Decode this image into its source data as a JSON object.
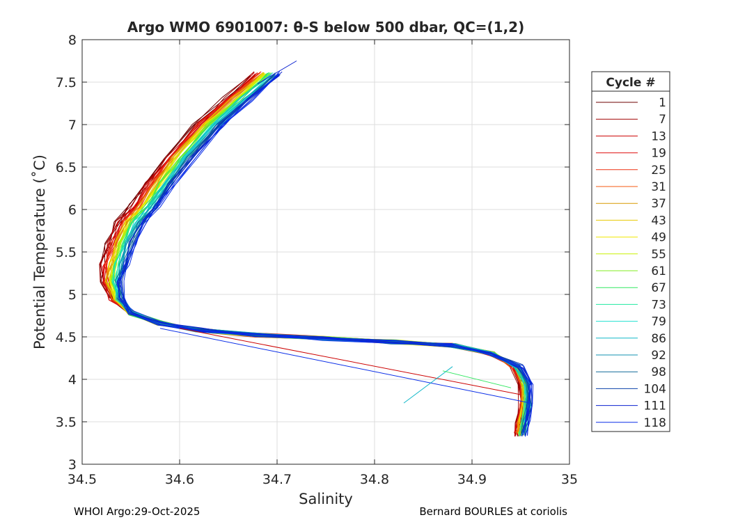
{
  "chart_data": {
    "type": "line",
    "title": "Argo WMO 6901007: θ-S below 500 dbar,  QC=(1,2)",
    "xlabel": "Salinity",
    "ylabel": "Potential Temperature (˚C)",
    "xlim": [
      34.5,
      35
    ],
    "ylim": [
      3,
      8
    ],
    "xticks": [
      34.5,
      34.6,
      34.7,
      34.8,
      34.9,
      35
    ],
    "xtick_labels": [
      "34.5",
      "34.6",
      "34.7",
      "34.8",
      "34.9",
      "35"
    ],
    "yticks": [
      3,
      3.5,
      4,
      4.5,
      5,
      5.5,
      6,
      6.5,
      7,
      7.5,
      8
    ],
    "ytick_labels": [
      "3",
      "3.5",
      "4",
      "4.5",
      "5",
      "5.5",
      "6",
      "6.5",
      "7",
      "7.5",
      "8"
    ],
    "grid": true,
    "legend_title": "Cycle #",
    "legend_position": "outside-right",
    "series": [
      {
        "name": "1",
        "color": "#6e0000"
      },
      {
        "name": "7",
        "color": "#a00000"
      },
      {
        "name": "13",
        "color": "#cc0000"
      },
      {
        "name": "19",
        "color": "#e01010"
      },
      {
        "name": "25",
        "color": "#ee3010"
      },
      {
        "name": "31",
        "color": "#f55a10"
      },
      {
        "name": "37",
        "color": "#d89a00"
      },
      {
        "name": "43",
        "color": "#e8c800"
      },
      {
        "name": "49",
        "color": "#f0e800"
      },
      {
        "name": "55",
        "color": "#c8f000"
      },
      {
        "name": "61",
        "color": "#80ee20"
      },
      {
        "name": "67",
        "color": "#30e860"
      },
      {
        "name": "73",
        "color": "#20e8a0"
      },
      {
        "name": "79",
        "color": "#20e0d0"
      },
      {
        "name": "86",
        "color": "#10b8c8"
      },
      {
        "name": "92",
        "color": "#1090b0"
      },
      {
        "name": "98",
        "color": "#106898"
      },
      {
        "name": "104",
        "color": "#0840a8"
      },
      {
        "name": "111",
        "color": "#0a20d0"
      },
      {
        "name": "118",
        "color": "#0a2ee8"
      }
    ],
    "profile": {
      "s": [
        34.69,
        34.66,
        34.63,
        34.6,
        34.58,
        34.565,
        34.55,
        34.54,
        34.533,
        34.53,
        34.535,
        34.55,
        34.58,
        34.62,
        34.68,
        34.75,
        34.82,
        34.88,
        34.92,
        34.945,
        34.955,
        34.955,
        34.952,
        34.95
      ],
      "t": [
        7.6,
        7.3,
        7.0,
        6.6,
        6.3,
        6.05,
        5.85,
        5.6,
        5.35,
        5.15,
        4.95,
        4.78,
        4.66,
        4.58,
        4.52,
        4.48,
        4.44,
        4.4,
        4.3,
        4.15,
        3.95,
        3.7,
        3.5,
        3.35
      ]
    },
    "spikes": [
      {
        "s1": 34.58,
        "t1": 4.6,
        "s2": 34.96,
        "t2": 3.72,
        "color": "#0a2ee8"
      },
      {
        "s1": 34.6,
        "t1": 4.6,
        "s2": 34.95,
        "t2": 3.82,
        "color": "#cc0000"
      },
      {
        "s1": 34.83,
        "t1": 3.72,
        "s2": 34.88,
        "t2": 4.15,
        "color": "#10b8c8"
      },
      {
        "s1": 34.72,
        "t1": 7.75,
        "s2": 34.68,
        "t2": 7.48,
        "color": "#0a20d0"
      },
      {
        "s1": 34.87,
        "t1": 4.1,
        "s2": 34.94,
        "t2": 3.9,
        "color": "#30e860"
      }
    ]
  },
  "footer": {
    "left": "WHOI Argo:29-Oct-2025",
    "right": "Bernard BOURLES at coriolis"
  }
}
